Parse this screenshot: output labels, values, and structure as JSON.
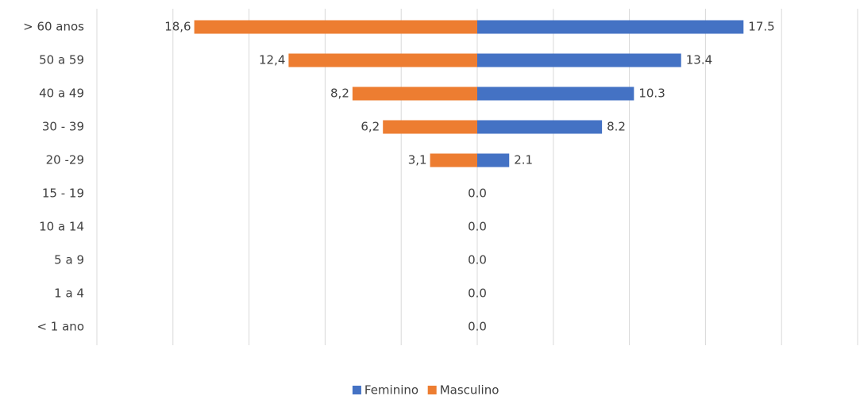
{
  "chart_data": {
    "type": "bar",
    "orientation": "horizontal",
    "categories": [
      "> 60 anos",
      "50 a 59",
      "40 a 49",
      "30 - 39",
      "20 -29",
      "15 - 19",
      "10 a 14",
      "5 a 9",
      "1 a 4",
      "< 1 ano"
    ],
    "series": [
      {
        "name": "Feminino",
        "color": "#4472c4",
        "values": [
          17.5,
          13.4,
          10.3,
          8.2,
          2.1,
          0,
          0,
          0,
          0,
          0
        ],
        "value_labels": [
          "17.5",
          "13.4",
          "10.3",
          "8.2",
          "2.1",
          "0.0",
          "0.0",
          "0.0",
          "0.0",
          "0.0"
        ]
      },
      {
        "name": "Masculino",
        "color": "#ed7d31",
        "values": [
          -18.6,
          -12.4,
          -8.2,
          -6.2,
          -3.1,
          0,
          0,
          0,
          0,
          0
        ],
        "value_labels": [
          "18,6",
          "12,4",
          "8,2",
          "6,2",
          "3,1",
          null,
          null,
          null,
          null,
          null
        ]
      }
    ],
    "xlim": [
      -25,
      25
    ],
    "xticks": [
      -25,
      -20,
      -15,
      -10,
      -5,
      0,
      5,
      10,
      15,
      20,
      25
    ],
    "grid": true,
    "legend": "bottom"
  }
}
